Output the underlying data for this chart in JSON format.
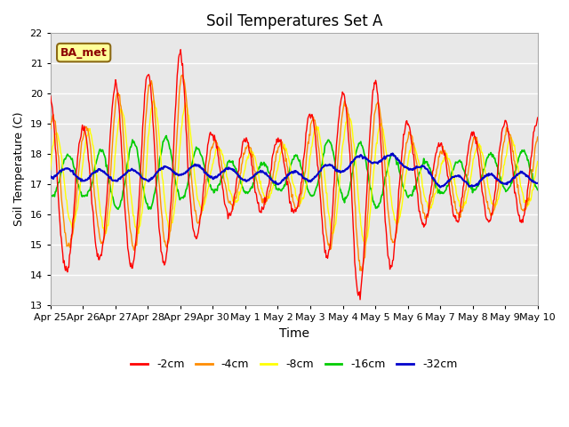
{
  "title": "Soil Temperatures Set A",
  "xlabel": "Time",
  "ylabel": "Soil Temperature (C)",
  "ylim": [
    13.0,
    22.0
  ],
  "yticks": [
    13.0,
    14.0,
    15.0,
    16.0,
    17.0,
    18.0,
    19.0,
    20.0,
    21.0,
    22.0
  ],
  "plot_bg_color": "#e8e8e8",
  "grid_color": "#ffffff",
  "label_box_text": "BA_met",
  "label_box_facecolor": "#ffff99",
  "label_box_edgecolor": "#8b6914",
  "label_box_textcolor": "#8b0000",
  "colors": {
    "-2cm": "#ff0000",
    "-4cm": "#ff8c00",
    "-8cm": "#ffff00",
    "-16cm": "#00cc00",
    "-32cm": "#0000cc"
  },
  "x_tick_labels": [
    "Apr 25",
    "Apr 26",
    "Apr 27",
    "Apr 28",
    "Apr 29",
    "Apr 30",
    "May 1",
    "May 2",
    "May 3",
    "May 4",
    "May 5",
    "May 6",
    "May 7",
    "May 8",
    "May 9",
    "May 10"
  ],
  "legend_labels": [
    "-2cm",
    "-4cm",
    "-8cm",
    "-16cm",
    "-32cm"
  ],
  "peak_amps_2cm": [
    3.6,
    2.0,
    3.5,
    3.7,
    4.2,
    1.3,
    1.3,
    1.3,
    2.1,
    2.5,
    3.6,
    1.8,
    1.2,
    1.5,
    1.8
  ],
  "trough_amps_2cm": [
    2.7,
    2.0,
    2.6,
    2.7,
    2.7,
    1.3,
    1.3,
    0.8,
    1.5,
    4.1,
    3.6,
    1.8,
    1.2,
    1.5,
    1.5
  ],
  "base_trend_2cm": [
    16.2,
    16.8,
    16.8,
    17.0,
    17.2,
    17.3,
    17.2,
    17.2,
    17.3,
    17.5,
    16.8,
    17.2,
    17.1,
    17.2,
    17.3
  ],
  "peak_amps_4cm": [
    2.8,
    1.8,
    3.0,
    3.2,
    3.5,
    1.1,
    1.1,
    1.1,
    1.8,
    2.2,
    2.8,
    1.5,
    1.0,
    1.3,
    1.5
  ],
  "trough_amps_4cm": [
    2.2,
    1.6,
    2.2,
    2.3,
    2.3,
    1.0,
    1.0,
    0.7,
    1.2,
    3.5,
    2.8,
    1.5,
    1.0,
    1.3,
    1.2
  ],
  "base_trend_4cm": [
    16.5,
    17.0,
    17.0,
    17.2,
    17.3,
    17.3,
    17.2,
    17.2,
    17.3,
    17.5,
    17.0,
    17.2,
    17.1,
    17.2,
    17.3
  ],
  "peak_amps_8cm": [
    1.9,
    1.5,
    2.3,
    2.4,
    2.5,
    0.9,
    0.9,
    0.9,
    1.5,
    1.8,
    2.0,
    1.2,
    0.8,
    1.0,
    1.2
  ],
  "trough_amps_8cm": [
    1.5,
    1.3,
    1.8,
    1.8,
    1.8,
    0.8,
    0.8,
    0.6,
    1.0,
    2.5,
    2.0,
    1.2,
    0.8,
    1.0,
    1.0
  ],
  "base_trend_8cm": [
    16.8,
    17.1,
    17.1,
    17.3,
    17.4,
    17.3,
    17.2,
    17.2,
    17.3,
    17.5,
    17.1,
    17.2,
    17.1,
    17.2,
    17.3
  ],
  "peak_amps_16cm": [
    0.8,
    0.7,
    1.2,
    1.3,
    1.2,
    0.5,
    0.5,
    0.5,
    0.8,
    1.2,
    1.0,
    0.7,
    0.5,
    0.6,
    0.7
  ],
  "trough_amps_16cm": [
    0.7,
    0.6,
    0.9,
    1.0,
    0.9,
    0.5,
    0.5,
    0.4,
    0.7,
    1.0,
    0.9,
    0.6,
    0.4,
    0.5,
    0.6
  ],
  "base_trend_16cm": [
    17.3,
    17.2,
    17.1,
    17.2,
    17.4,
    17.3,
    17.2,
    17.2,
    17.3,
    17.5,
    17.1,
    17.2,
    17.1,
    17.3,
    17.4
  ],
  "phase_shift_2cm": 0.0,
  "phase_shift_4cm": 0.08,
  "phase_shift_8cm": 0.18,
  "phase_shift_16cm": 0.55,
  "phase_shift_32cm": 1.5
}
